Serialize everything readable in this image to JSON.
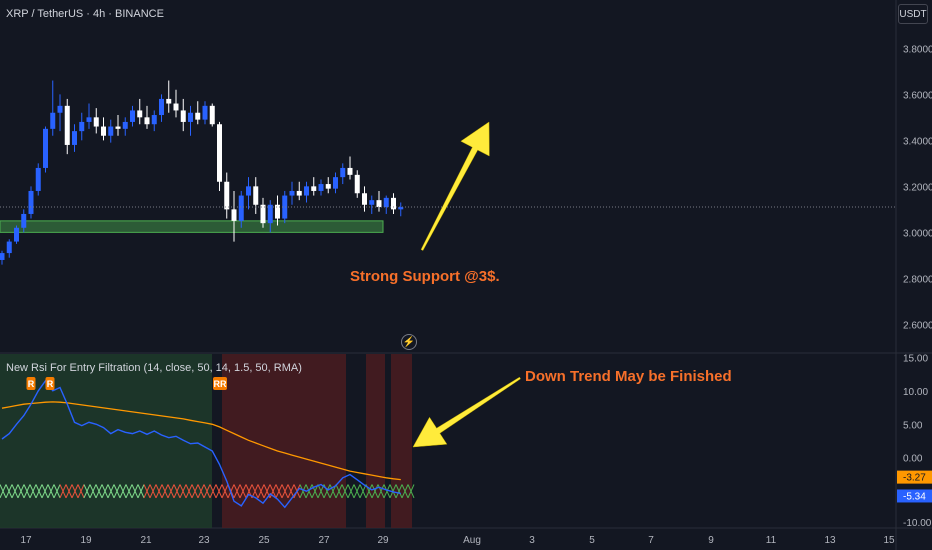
{
  "header": {
    "symbol_title": "XRP / TetherUS · 4h · BINANCE",
    "currency_label": "USDT"
  },
  "indicator": {
    "title": "New Rsi For Entry Filtration (14, close, 50, 14, 1.5, 50, RMA)",
    "markers": [
      "R",
      "R",
      "RR"
    ]
  },
  "annotations": {
    "support_text": "Strong Support @3$.",
    "trend_text": "Down Trend May be Finished"
  },
  "colors": {
    "background": "#131722",
    "bull_candle": "#2962ff",
    "bear_candle": "#ffffff",
    "support_zone": "#4caf50",
    "annotation": "#f7702a",
    "arrow": "#ffeb3b",
    "rsi_line": "#2962ff",
    "rsi_ma": "#ff9800",
    "red_zone": "#b22833",
    "green_zone": "#2e5e35"
  },
  "chart_data": [
    {
      "type": "candlestick",
      "title": "XRP / TetherUS · 4h · BINANCE",
      "y_axis_ticks": [
        "3.8000",
        "3.6000",
        "3.4000",
        "3.2000",
        "3.0000",
        "2.8000",
        "2.6000"
      ],
      "y_tick_values": [
        3.8,
        3.6,
        3.4,
        3.2,
        3.0,
        2.8,
        2.6
      ],
      "x_axis_ticks": [
        "17",
        "19",
        "21",
        "23",
        "25",
        "27",
        "29",
        "Aug",
        "3",
        "5",
        "7",
        "9",
        "11",
        "13",
        "15"
      ],
      "x_tick_positions": [
        0,
        12,
        24,
        36,
        48,
        60,
        72,
        89,
        101,
        113,
        125,
        137,
        149,
        161,
        173
      ],
      "ylim": [
        2.48,
        4.01
      ],
      "last_price": 3.11,
      "support_zone": [
        3.0,
        3.05
      ],
      "ohlc": [
        [
          2.88,
          2.92,
          2.86,
          2.91
        ],
        [
          2.91,
          2.97,
          2.89,
          2.96
        ],
        [
          2.96,
          3.03,
          2.95,
          3.02
        ],
        [
          3.02,
          3.1,
          3.0,
          3.08
        ],
        [
          3.08,
          3.2,
          3.06,
          3.18
        ],
        [
          3.18,
          3.3,
          3.16,
          3.28
        ],
        [
          3.28,
          3.46,
          3.26,
          3.45
        ],
        [
          3.45,
          3.66,
          3.42,
          3.52
        ],
        [
          3.52,
          3.6,
          3.44,
          3.55
        ],
        [
          3.55,
          3.58,
          3.34,
          3.38
        ],
        [
          3.38,
          3.47,
          3.35,
          3.44
        ],
        [
          3.44,
          3.52,
          3.4,
          3.48
        ],
        [
          3.48,
          3.56,
          3.45,
          3.5
        ],
        [
          3.5,
          3.54,
          3.43,
          3.46
        ],
        [
          3.46,
          3.5,
          3.4,
          3.42
        ],
        [
          3.42,
          3.49,
          3.39,
          3.46
        ],
        [
          3.46,
          3.51,
          3.42,
          3.45
        ],
        [
          3.45,
          3.5,
          3.42,
          3.48
        ],
        [
          3.48,
          3.55,
          3.46,
          3.53
        ],
        [
          3.53,
          3.58,
          3.47,
          3.5
        ],
        [
          3.5,
          3.55,
          3.45,
          3.47
        ],
        [
          3.47,
          3.53,
          3.44,
          3.51
        ],
        [
          3.51,
          3.6,
          3.48,
          3.58
        ],
        [
          3.58,
          3.66,
          3.52,
          3.56
        ],
        [
          3.56,
          3.62,
          3.5,
          3.53
        ],
        [
          3.53,
          3.58,
          3.44,
          3.48
        ],
        [
          3.48,
          3.55,
          3.42,
          3.52
        ],
        [
          3.52,
          3.57,
          3.47,
          3.49
        ],
        [
          3.49,
          3.57,
          3.47,
          3.55
        ],
        [
          3.55,
          3.56,
          3.46,
          3.47
        ],
        [
          3.47,
          3.48,
          3.18,
          3.22
        ],
        [
          3.22,
          3.26,
          3.06,
          3.1
        ],
        [
          3.1,
          3.18,
          2.96,
          3.05
        ],
        [
          3.05,
          3.18,
          3.02,
          3.16
        ],
        [
          3.16,
          3.24,
          3.1,
          3.2
        ],
        [
          3.2,
          3.24,
          3.08,
          3.12
        ],
        [
          3.12,
          3.15,
          3.02,
          3.04
        ],
        [
          3.04,
          3.14,
          3.0,
          3.12
        ],
        [
          3.12,
          3.16,
          3.03,
          3.06
        ],
        [
          3.06,
          3.18,
          3.04,
          3.16
        ],
        [
          3.16,
          3.22,
          3.12,
          3.18
        ],
        [
          3.18,
          3.22,
          3.14,
          3.16
        ],
        [
          3.16,
          3.22,
          3.13,
          3.2
        ],
        [
          3.2,
          3.24,
          3.16,
          3.18
        ],
        [
          3.18,
          3.23,
          3.16,
          3.21
        ],
        [
          3.21,
          3.24,
          3.17,
          3.19
        ],
        [
          3.19,
          3.26,
          3.17,
          3.24
        ],
        [
          3.24,
          3.3,
          3.21,
          3.28
        ],
        [
          3.28,
          3.33,
          3.23,
          3.25
        ],
        [
          3.25,
          3.27,
          3.15,
          3.17
        ],
        [
          3.17,
          3.2,
          3.09,
          3.12
        ],
        [
          3.12,
          3.16,
          3.08,
          3.14
        ],
        [
          3.14,
          3.18,
          3.09,
          3.11
        ],
        [
          3.11,
          3.16,
          3.08,
          3.15
        ],
        [
          3.15,
          3.17,
          3.08,
          3.1
        ],
        [
          3.1,
          3.13,
          3.07,
          3.11
        ]
      ]
    },
    {
      "type": "line",
      "title": "New Rsi For Entry Filtration (14, close, 50, 14, 1.5, 50, RMA)",
      "y_axis_ticks": [
        "15.00",
        "10.00",
        "5.00",
        "0.00",
        "-10.00"
      ],
      "y_tick_values": [
        15,
        10,
        5,
        0,
        -10
      ],
      "ylim": [
        -10.5,
        15.5
      ],
      "series": [
        {
          "name": "",
          "values": [
            2.8,
            3.6,
            5.0,
            6.3,
            8.0,
            10.0,
            11.5,
            10.0,
            10.5,
            8.0,
            5.3,
            4.8,
            5.3,
            5.0,
            4.5,
            3.6,
            4.2,
            3.8,
            3.6,
            4.0,
            3.5,
            4.0,
            3.4,
            3.0,
            3.2,
            2.6,
            2.1,
            2.2,
            1.6,
            1.0,
            -1.0,
            -3.5,
            -6.5,
            -7.2,
            -5.5,
            -6.0,
            -6.8,
            -5.4,
            -6.2,
            -7.4,
            -6.0,
            -4.6,
            -5.0,
            -4.4,
            -4.0,
            -4.8,
            -4.2,
            -3.0,
            -2.5,
            -3.3,
            -4.1,
            -4.8,
            -4.4,
            -4.8,
            -5.1,
            -5.34
          ]
        },
        {
          "name": "",
          "values": [
            7.4,
            7.6,
            7.8,
            8.0,
            8.1,
            8.2,
            8.3,
            8.35,
            8.3,
            8.2,
            8.05,
            7.9,
            7.75,
            7.6,
            7.45,
            7.3,
            7.15,
            7.0,
            6.85,
            6.7,
            6.55,
            6.4,
            6.25,
            6.1,
            5.95,
            5.8,
            5.6,
            5.4,
            5.2,
            5.0,
            4.6,
            4.1,
            3.6,
            3.1,
            2.6,
            2.2,
            1.8,
            1.4,
            1.0,
            0.7,
            0.4,
            0.1,
            -0.2,
            -0.5,
            -0.8,
            -1.1,
            -1.4,
            -1.7,
            -2.0,
            -2.2,
            -2.4,
            -2.6,
            -2.8,
            -3.0,
            -3.15,
            -3.27
          ]
        }
      ],
      "last_values": [
        "-3.27",
        "-5.34"
      ],
      "markers": [
        "R",
        "R",
        "RR"
      ]
    }
  ]
}
